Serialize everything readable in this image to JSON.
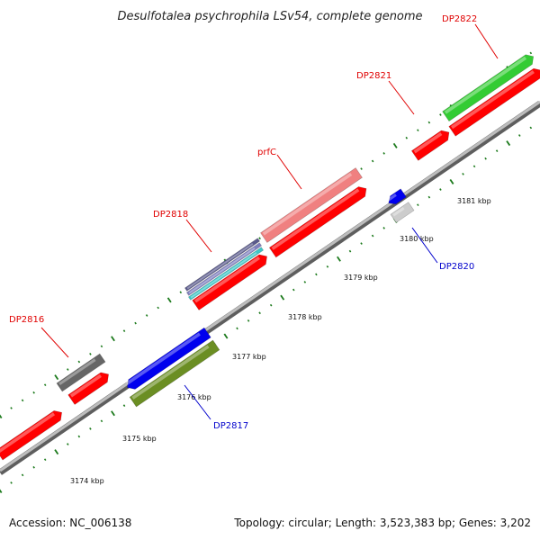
{
  "title": "Desulfotalea psychrophila LSv54, complete genome",
  "accession": "Accession: NC_006138",
  "topology": "Topology: circular; Length: 3,523,383 bp; Genes: 3,202",
  "colors": {
    "backbone": "#8a8a8a",
    "cds": "#ff0000",
    "label_top": "#e00000",
    "label_bottom": "#0000cc",
    "tick_major": "#1c7a1c",
    "tick_minor": "#1c7a1c"
  },
  "ticks": [
    "3174 kbp",
    "3175 kbp",
    "3176 kbp",
    "3177 kbp",
    "3178 kbp",
    "3179 kbp",
    "3180 kbp",
    "3181 kbp"
  ],
  "gene_labels": {
    "dp2816": "DP2816",
    "dp2817": "DP2817",
    "dp2818": "DP2818",
    "prfc": "prfC",
    "dp2820": "DP2820",
    "dp2821": "DP2821",
    "dp2822": "DP2822"
  },
  "feature_colors": {
    "dp2816": "#666666",
    "dp2817_blue": "#0000ee",
    "dp2817_olive": "#6b8e23",
    "dp2818_stripe1": "#5a5a8c",
    "dp2818_stripe2": "#8080c0",
    "dp2818_stripe3": "#3cc8c8",
    "prfc": "#f08080",
    "dp2820_blue": "#0000ee",
    "dp2820_grey": "#cccccc",
    "dp2822": "#33cc33"
  }
}
